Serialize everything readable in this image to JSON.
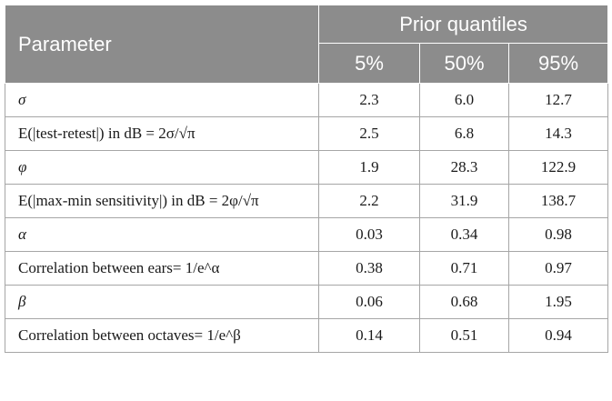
{
  "header": {
    "parameter": "Parameter",
    "prior_quantiles": "Prior quantiles",
    "q5": "5%",
    "q50": "50%",
    "q95": "95%"
  },
  "rows": [
    {
      "parameter": "σ",
      "q5": "2.3",
      "q50": "6.0",
      "q95": "12.7"
    },
    {
      "parameter": "E(|test-retest|) in dB = 2σ/√π",
      "q5": "2.5",
      "q50": "6.8",
      "q95": "14.3"
    },
    {
      "parameter": "φ",
      "q5": "1.9",
      "q50": "28.3",
      "q95": "122.9"
    },
    {
      "parameter": "E(|max-min sensitivity|) in dB = 2φ/√π",
      "q5": "2.2",
      "q50": "31.9",
      "q95": "138.7"
    },
    {
      "parameter": "α",
      "q5": "0.03",
      "q50": "0.34",
      "q95": "0.98"
    },
    {
      "parameter": "Correlation between ears= 1/e^α",
      "q5": "0.38",
      "q50": "0.71",
      "q95": "0.97"
    },
    {
      "parameter": "β",
      "q5": "0.06",
      "q50": "0.68",
      "q95": "1.95"
    },
    {
      "parameter": "Correlation between octaves= 1/e^β",
      "q5": "0.14",
      "q50": "0.51",
      "q95": "0.94"
    }
  ]
}
